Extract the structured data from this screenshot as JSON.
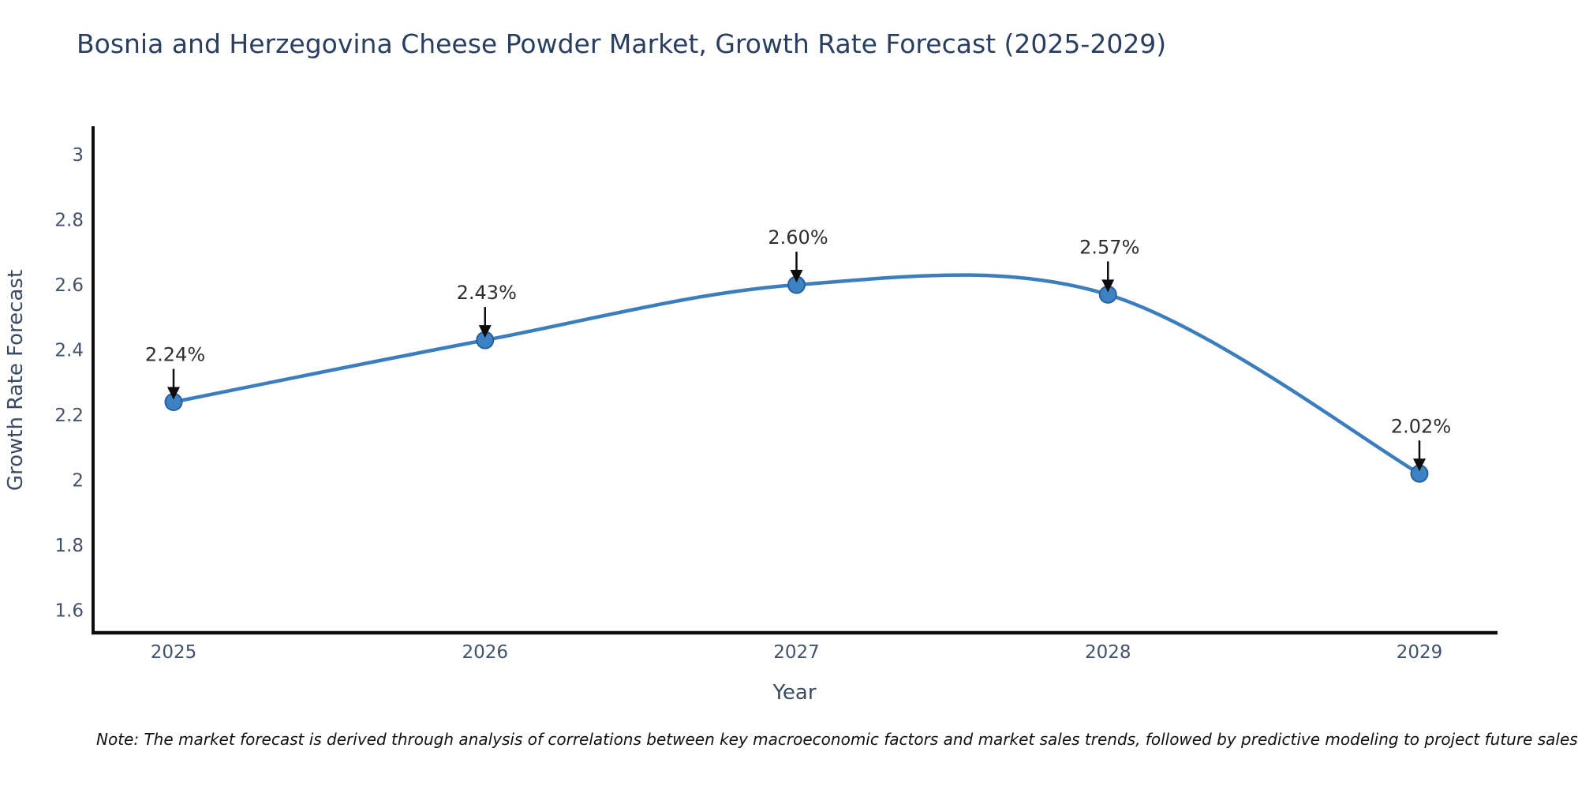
{
  "chart_data": {
    "type": "line",
    "title": "Bosnia and Herzegovina Cheese Powder Market, Growth Rate Forecast (2025-2029)",
    "x": [
      2025,
      2026,
      2027,
      2028,
      2029
    ],
    "xtick_labels": [
      "2025",
      "2026",
      "2027",
      "2028",
      "2029"
    ],
    "series": [
      {
        "name": "Growth Rate Forecast",
        "values": [
          2.24,
          2.43,
          2.6,
          2.57,
          2.02
        ],
        "point_labels": [
          "2.24%",
          "2.43%",
          "2.60%",
          "2.57%",
          "2.02%"
        ]
      }
    ],
    "xlabel": "Year",
    "ylabel": "Growth Rate Forecast",
    "yticks": [
      3,
      2.8,
      2.6,
      2.4,
      2.2,
      2,
      1.8,
      1.6
    ],
    "ytick_labels": [
      "3",
      "2.8",
      "2.6",
      "2.4",
      "2.2",
      "2",
      "1.8",
      "1.6"
    ],
    "ylim": [
      1.53,
      3.09
    ],
    "grid": false,
    "legend_position": "none",
    "line_shape": "spline",
    "markers": true,
    "annotation_style": "value label with down arrow to point"
  },
  "note": "Note: The market forecast is derived through analysis of correlations between key macroeconomic factors and market sales trends, followed by predictive modeling to project future sales",
  "colors": {
    "line": "#3c7ebd",
    "marker_fill": "#3d82c3",
    "marker_edge": "#2a6099",
    "axis": "#0d0d0d",
    "tick_text": "#42526b",
    "title_text": "#2a3f5f",
    "axis_label_text": "#3b4a63",
    "annotation_text": "#2e2e2e",
    "arrow": "#0d0d0d",
    "note_text": "#111111",
    "background": "#ffffff"
  }
}
